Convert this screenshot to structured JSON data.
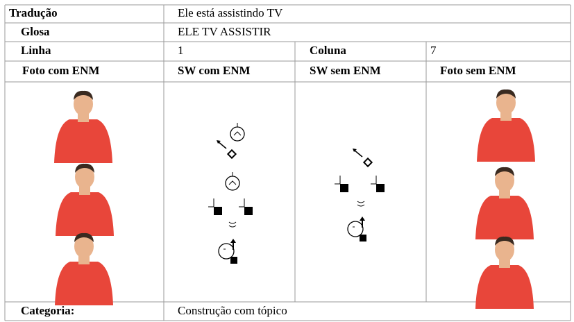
{
  "table": {
    "rows": [
      [
        "Tradução",
        "Ele está assistindo TV"
      ],
      [
        "Glosa",
        "ELE TV ASSISTIR"
      ],
      [
        "Linha",
        "1",
        "Coluna",
        "7"
      ],
      [
        "Foto com ENM",
        "SW com ENM",
        "SW sem ENM",
        "Foto sem ENM"
      ],
      [
        "Categoria:",
        "Construção com tópico"
      ]
    ]
  }
}
